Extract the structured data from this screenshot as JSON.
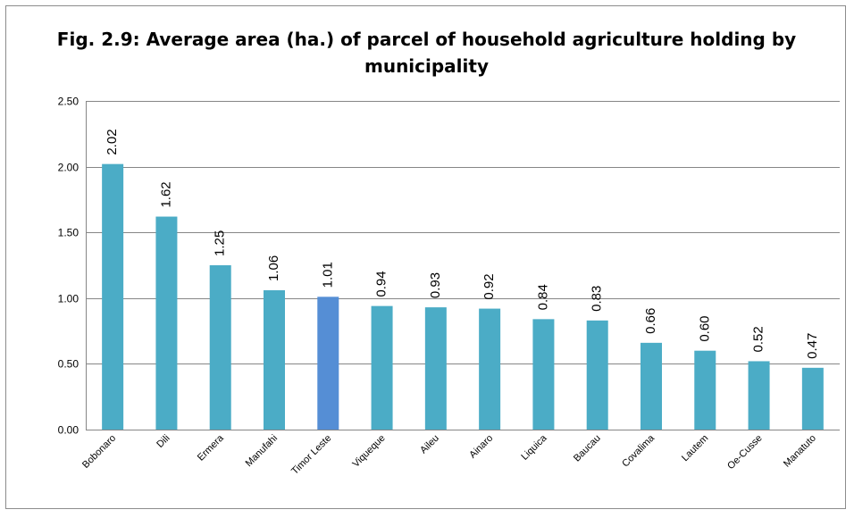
{
  "chart_data": {
    "type": "bar",
    "title_lines": [
      "Fig. 2.9: Average area (ha.) of parcel of household agriculture holding by",
      "municipality"
    ],
    "xlabel": "",
    "ylabel": "",
    "ylim": [
      0,
      2.5
    ],
    "yticks": [
      "0.00",
      "0.50",
      "1.00",
      "1.50",
      "2.00",
      "2.50"
    ],
    "yticks_values": [
      0,
      0.5,
      1,
      1.5,
      2,
      2.5
    ],
    "grid": true,
    "legend": "none",
    "categories": [
      "Bobonaro",
      "Dili",
      "Ermera",
      "Manufahi",
      "Timor Leste",
      "Viqueque",
      "Aileu",
      "Ainaro",
      "Liquica",
      "Baucau",
      "Covalima",
      "Lautem",
      "Oe-Cusse",
      "Manatuto"
    ],
    "values": [
      2.02,
      1.62,
      1.25,
      1.06,
      1.01,
      0.94,
      0.93,
      0.92,
      0.84,
      0.83,
      0.66,
      0.6,
      0.52,
      0.47
    ],
    "value_labels": [
      "2.02",
      "1.62",
      "1.25",
      "1.06",
      "1.01",
      "0.94",
      "0.93",
      "0.92",
      "0.84",
      "0.83",
      "0.66",
      "0.60",
      "0.52",
      "0.47"
    ],
    "highlight_category": "Timor Leste",
    "colors": {
      "bar": "#4bacc6",
      "highlight": "#558ed5",
      "grid": "#868686",
      "axis": "#868686"
    }
  }
}
